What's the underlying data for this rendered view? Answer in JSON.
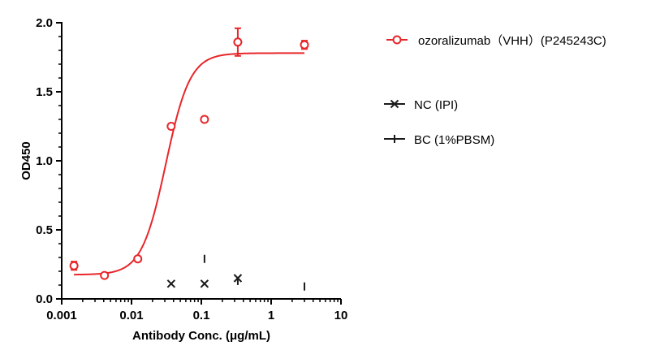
{
  "chart_data": {
    "type": "scatter",
    "xlabel": "Antibody Conc. (μg/mL)",
    "ylabel": "OD450",
    "xscale": "log",
    "xlim": [
      0.001,
      10
    ],
    "ylim": [
      0,
      2.0
    ],
    "x_ticks": [
      {
        "value": 0.001,
        "label": "0.001"
      },
      {
        "value": 0.01,
        "label": "0.01"
      },
      {
        "value": 0.1,
        "label": "0.1"
      },
      {
        "value": 1,
        "label": "1"
      },
      {
        "value": 10,
        "label": "10"
      }
    ],
    "y_ticks": [
      {
        "value": 0,
        "label": "0.0"
      },
      {
        "value": 0.5,
        "label": "0.5"
      },
      {
        "value": 1.0,
        "label": "1.0"
      },
      {
        "value": 1.5,
        "label": "1.5"
      },
      {
        "value": 2.0,
        "label": "2.0"
      }
    ],
    "grid": false,
    "legend_position": "right",
    "series": [
      {
        "name": "ozoralizumab（VHH）(P245243C)",
        "color": "#e8262a",
        "marker": "open-circle",
        "points": [
          {
            "x": 0.0015,
            "y": 0.24,
            "err": 0.03
          },
          {
            "x": 0.0041,
            "y": 0.17,
            "err": 0.01
          },
          {
            "x": 0.0123,
            "y": 0.29,
            "err": 0.01
          },
          {
            "x": 0.037,
            "y": 1.25,
            "err": 0.01
          },
          {
            "x": 0.111,
            "y": 1.3,
            "err": 0.01
          },
          {
            "x": 0.333,
            "y": 1.86,
            "err": 0.1
          },
          {
            "x": 3.0,
            "y": 1.84,
            "err": 0.03
          }
        ],
        "fit": {
          "model": "4PL",
          "bottom": 0.175,
          "top": 1.78,
          "ec50": 0.031,
          "hill": 2.5,
          "x_range": [
            0.0015,
            3.0
          ]
        }
      },
      {
        "name": "NC (IPI)",
        "color": "#1a1a1a",
        "marker": "x",
        "points": [
          {
            "x": 0.037,
            "y": 0.11
          },
          {
            "x": 0.111,
            "y": 0.11
          },
          {
            "x": 0.333,
            "y": 0.15
          }
        ]
      },
      {
        "name": "BC (1%PBSM)",
        "color": "#1a1a1a",
        "marker": "plus",
        "points": [
          {
            "x": 0.111,
            "y": 0.29
          },
          {
            "x": 0.333,
            "y": 0.13
          },
          {
            "x": 3.0,
            "y": 0.09
          }
        ]
      }
    ]
  }
}
